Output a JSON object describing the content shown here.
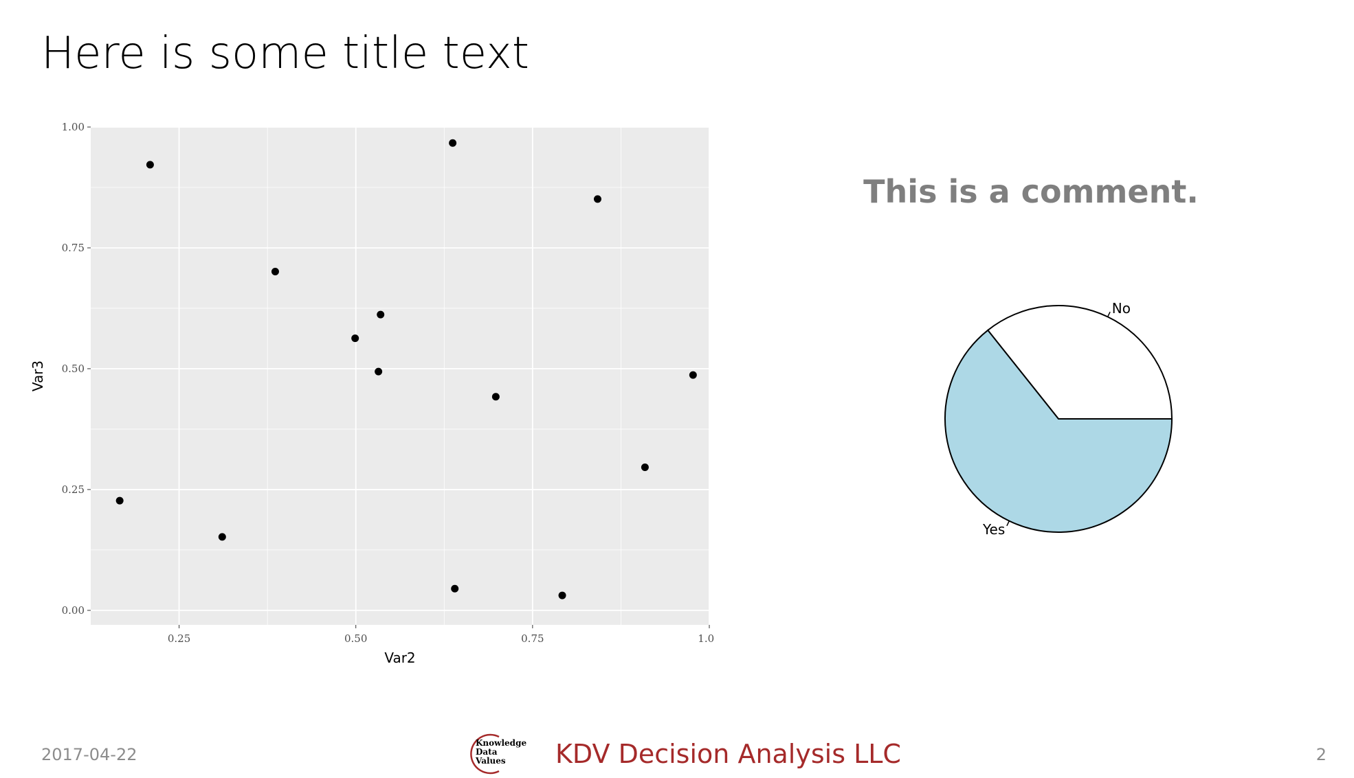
{
  "slide": {
    "title": "Here is some title text",
    "comment": "This is a comment.",
    "footer": {
      "date": "2017-04-22",
      "company": "KDV Decision Analysis LLC",
      "page_number": "2",
      "logo_lines": [
        "Knowledge",
        "Data",
        "Values"
      ]
    },
    "colors": {
      "title": "#000000",
      "comment": "#7f7f7f",
      "footer_text": "#8c8c8c",
      "brand": "#a52a2a",
      "panel": "#ebebeb",
      "pie_yes": "#add8e6",
      "pie_no": "#ffffff"
    }
  },
  "chart_data": [
    {
      "type": "scatter",
      "xlabel": "Var2",
      "ylabel": "Var3",
      "xlim": [
        0.125,
        1.0
      ],
      "ylim": [
        -0.03,
        1.0
      ],
      "x_ticks": [
        0.25,
        0.5,
        0.75,
        1.0
      ],
      "x_tick_labels": [
        "0.25",
        "0.50",
        "0.75",
        "1.00"
      ],
      "y_ticks": [
        0.0,
        0.25,
        0.5,
        0.75,
        1.0
      ],
      "y_tick_labels": [
        "0.00",
        "0.25",
        "0.50",
        "0.75",
        "1.00"
      ],
      "grid": true,
      "points": [
        {
          "x": 0.166,
          "y": 0.227
        },
        {
          "x": 0.209,
          "y": 0.922
        },
        {
          "x": 0.311,
          "y": 0.152
        },
        {
          "x": 0.386,
          "y": 0.701
        },
        {
          "x": 0.499,
          "y": 0.563
        },
        {
          "x": 0.532,
          "y": 0.494
        },
        {
          "x": 0.535,
          "y": 0.612
        },
        {
          "x": 0.637,
          "y": 0.967
        },
        {
          "x": 0.64,
          "y": 0.045
        },
        {
          "x": 0.698,
          "y": 0.442
        },
        {
          "x": 0.792,
          "y": 0.031
        },
        {
          "x": 0.842,
          "y": 0.851
        },
        {
          "x": 0.909,
          "y": 0.296
        },
        {
          "x": 0.977,
          "y": 0.487
        }
      ]
    },
    {
      "type": "pie",
      "slices": [
        {
          "label": "No",
          "value": 0.357,
          "color": "#ffffff"
        },
        {
          "label": "Yes",
          "value": 0.643,
          "color": "#add8e6"
        }
      ]
    }
  ]
}
